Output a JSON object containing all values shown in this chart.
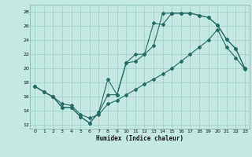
{
  "xlabel": "Humidex (Indice chaleur)",
  "xlim": [
    -0.5,
    23.5
  ],
  "ylim": [
    11.5,
    29.0
  ],
  "yticks": [
    12,
    14,
    16,
    18,
    20,
    22,
    24,
    26,
    28
  ],
  "xticks": [
    0,
    1,
    2,
    3,
    4,
    5,
    6,
    7,
    8,
    9,
    10,
    11,
    12,
    13,
    14,
    15,
    16,
    17,
    18,
    19,
    20,
    21,
    22,
    23
  ],
  "bg_color": "#c5e8e2",
  "grid_color": "#9ecec7",
  "line_color": "#236b64",
  "line1_x": [
    0,
    1,
    2,
    3,
    4,
    5,
    6,
    7,
    8,
    9,
    10,
    11,
    12,
    13,
    14,
    15,
    16,
    17,
    18,
    19,
    20,
    21,
    22,
    23
  ],
  "line1_y": [
    17.5,
    16.7,
    16.0,
    14.5,
    14.5,
    13.2,
    12.3,
    13.8,
    18.5,
    16.3,
    20.8,
    22.0,
    22.0,
    26.4,
    26.2,
    27.8,
    27.8,
    27.8,
    27.5,
    27.2,
    26.1,
    24.1,
    22.8,
    20.0
  ],
  "line2_x": [
    0,
    1,
    2,
    3,
    4,
    5,
    6,
    7,
    8,
    9,
    10,
    11,
    12,
    13,
    14,
    15,
    16,
    17,
    18,
    19,
    20,
    21,
    22,
    23
  ],
  "line2_y": [
    17.5,
    16.7,
    16.0,
    14.5,
    14.5,
    13.2,
    12.3,
    13.8,
    16.3,
    16.3,
    20.8,
    21.0,
    22.0,
    23.2,
    27.8,
    27.8,
    27.8,
    27.8,
    27.5,
    27.2,
    26.1,
    24.1,
    22.8,
    20.0
  ],
  "line3_x": [
    0,
    1,
    2,
    3,
    4,
    5,
    6,
    7,
    8,
    9,
    10,
    11,
    12,
    13,
    14,
    15,
    16,
    17,
    18,
    19,
    20,
    21,
    22,
    23
  ],
  "line3_y": [
    17.5,
    16.7,
    16.0,
    15.0,
    14.8,
    13.5,
    13.0,
    13.5,
    15.0,
    15.5,
    16.3,
    17.0,
    17.8,
    18.5,
    19.2,
    20.0,
    21.0,
    22.0,
    23.0,
    24.0,
    25.5,
    23.0,
    21.5,
    19.9
  ]
}
